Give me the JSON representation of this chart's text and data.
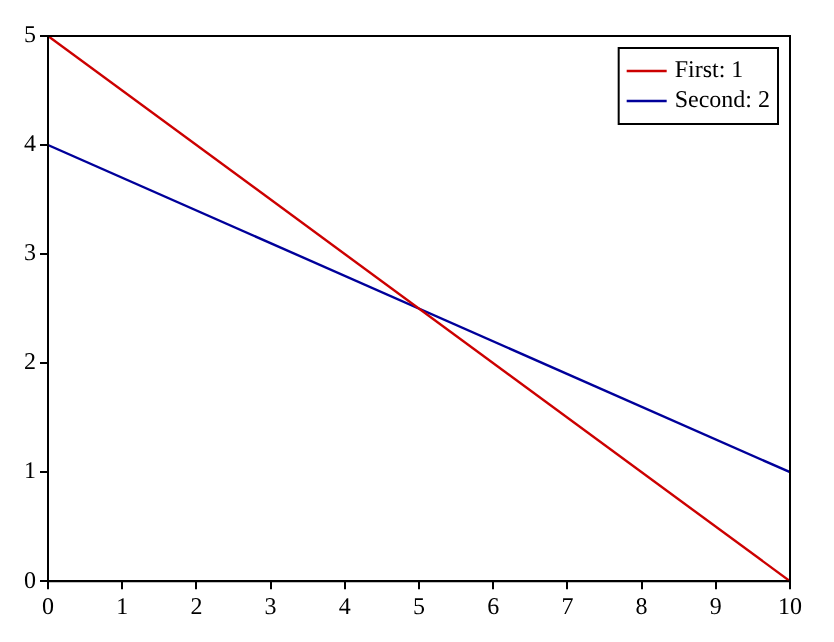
{
  "chart_data": {
    "type": "line",
    "x": [
      0,
      10
    ],
    "series": [
      {
        "name": "First: 1",
        "color": "#cc0000",
        "values": [
          5,
          0
        ]
      },
      {
        "name": "Second: 2",
        "color": "#00009a",
        "values": [
          4,
          1
        ]
      }
    ],
    "xlim": [
      0,
      10
    ],
    "xticks": [
      0,
      1,
      2,
      3,
      4,
      5,
      6,
      7,
      8,
      9,
      10
    ],
    "ylim": [
      0,
      5
    ],
    "yticks": [
      0,
      1,
      2,
      3,
      4,
      5
    ],
    "grid": false,
    "legend": "top right",
    "marker": "none",
    "line_style": "solid"
  }
}
